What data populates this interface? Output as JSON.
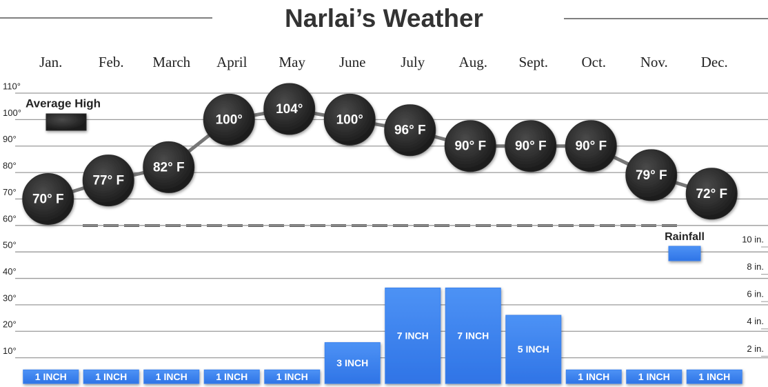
{
  "chart_data": {
    "type": "combo",
    "title": "Narlai’s Weather",
    "categories": [
      "Jan.",
      "Feb.",
      "March",
      "April",
      "May",
      "June",
      "July",
      "Aug.",
      "Sept.",
      "Oct.",
      "Nov.",
      "Dec."
    ],
    "series": [
      {
        "name": "Average High",
        "type": "line",
        "color": "#2b2b2b",
        "values": [
          70,
          77,
          82,
          100,
          104,
          100,
          96,
          90,
          90,
          90,
          79,
          72
        ],
        "value_labels": [
          "70° F",
          "77° F",
          "82° F",
          "100°",
          "104°",
          "100°",
          "96° F",
          "90° F",
          "90° F",
          "90° F",
          "79° F",
          "72° F"
        ]
      },
      {
        "name": "Rainfall",
        "type": "bar",
        "axis": "y2",
        "color": "#3b82ee",
        "values": [
          1,
          1,
          1,
          1,
          1,
          3,
          7,
          7,
          5,
          1,
          1,
          1
        ],
        "value_labels": [
          "1 INCH",
          "1 INCH",
          "1 INCH",
          "1 INCH",
          "1 INCH",
          "3 INCH",
          "7 INCH",
          "7 INCH",
          "5 INCH",
          "1 INCH",
          "1 INCH",
          "1 INCH"
        ]
      }
    ],
    "ylim": [
      0,
      110
    ],
    "yticks": [
      {
        "value": 10,
        "label": "10°"
      },
      {
        "value": 20,
        "label": "20°"
      },
      {
        "value": 30,
        "label": "30°"
      },
      {
        "value": 40,
        "label": "40°"
      },
      {
        "value": 50,
        "label": "50°"
      },
      {
        "value": 60,
        "label": "60°"
      },
      {
        "value": 70,
        "label": "70°"
      },
      {
        "value": 80,
        "label": "80°"
      },
      {
        "value": 90,
        "label": "90°"
      },
      {
        "value": 100,
        "label": "100°"
      },
      {
        "value": 110,
        "label": "110°"
      }
    ],
    "y2lim": [
      0,
      10
    ],
    "y2ticks": [
      {
        "value": 2,
        "label": "2 in."
      },
      {
        "value": 4,
        "label": "4 in."
      },
      {
        "value": 6,
        "label": "6 in."
      },
      {
        "value": 8,
        "label": "8 in."
      },
      {
        "value": 10,
        "label": "10 in."
      }
    ],
    "grid": true
  }
}
